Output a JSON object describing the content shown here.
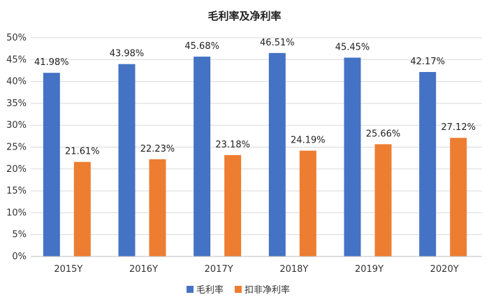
{
  "chart_data": {
    "type": "bar",
    "title": "毛利率及净利率",
    "categories": [
      "2015Y",
      "2016Y",
      "2017Y",
      "2018Y",
      "2019Y",
      "2020Y"
    ],
    "series": [
      {
        "name": "毛利率",
        "color": "#4472C4",
        "values": [
          41.98,
          43.98,
          45.68,
          46.51,
          45.45,
          42.17
        ],
        "labels": [
          "41.98%",
          "43.98%",
          "45.68%",
          "46.51%",
          "45.45%",
          "42.17%"
        ]
      },
      {
        "name": "扣非净利率",
        "color": "#ED7D31",
        "values": [
          21.61,
          22.23,
          23.18,
          24.19,
          25.66,
          27.12
        ],
        "labels": [
          "21.61%",
          "22.23%",
          "23.18%",
          "24.19%",
          "25.66%",
          "27.12%"
        ]
      }
    ],
    "ylim": [
      0,
      50
    ],
    "yticks": [
      "0%",
      "5%",
      "10%",
      "15%",
      "20%",
      "25%",
      "30%",
      "35%",
      "40%",
      "45%",
      "50%"
    ],
    "xlabel": "",
    "ylabel": "",
    "legend_position": "bottom",
    "grid": "horizontal"
  }
}
